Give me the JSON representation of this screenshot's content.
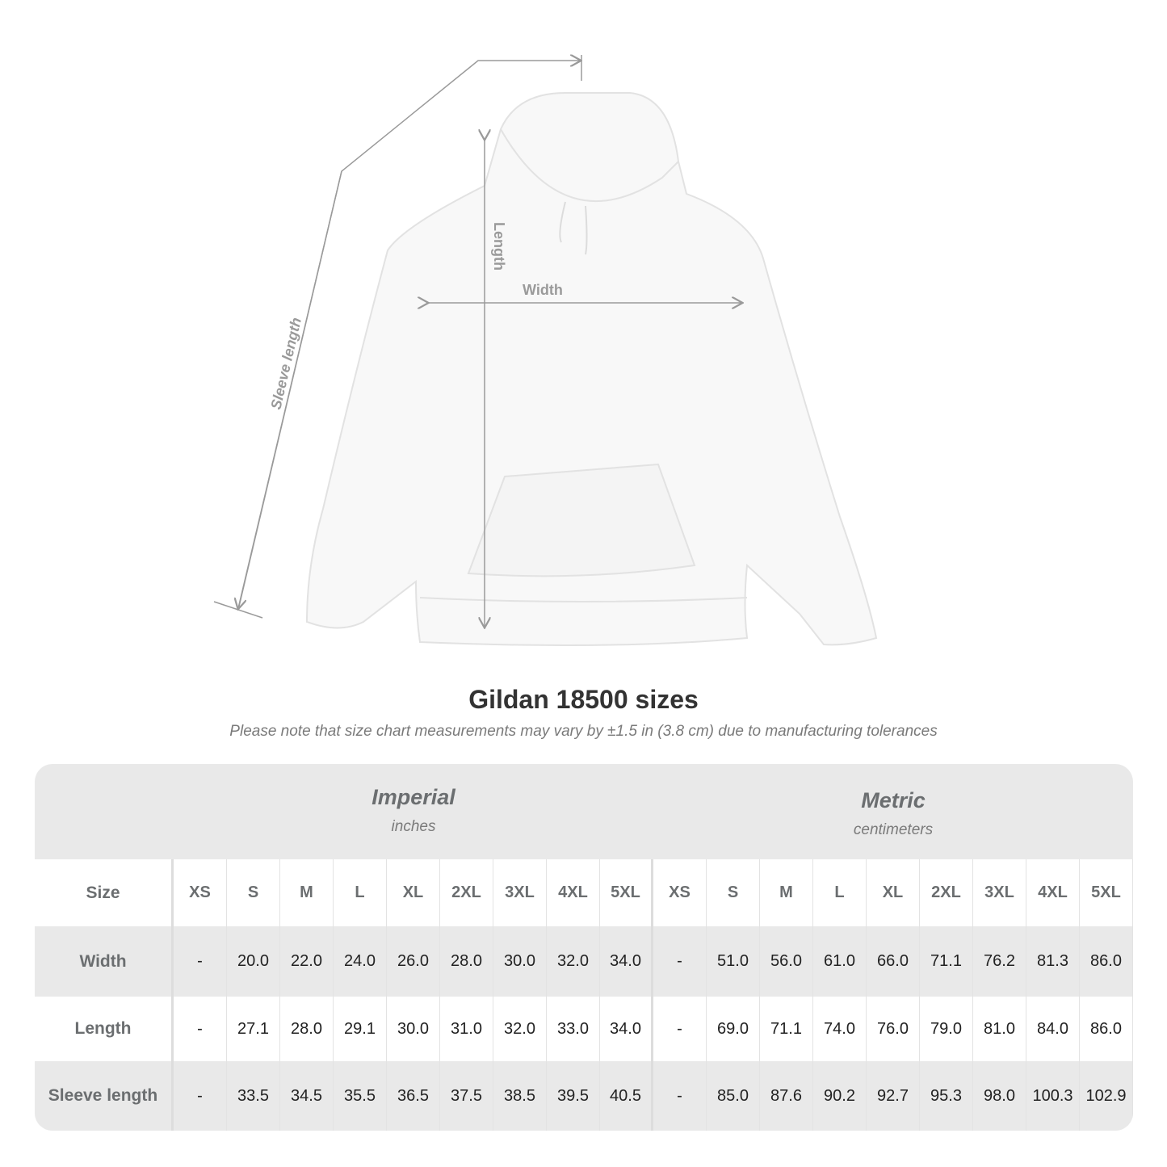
{
  "diagram": {
    "labels": {
      "length": "Length",
      "width": "Width",
      "sleeve": "Sleeve length"
    },
    "line_color": "#9a9a9a"
  },
  "title": "Gildan 18500 sizes",
  "subtitle": "Please note that size chart measurements may vary by ±1.5 in (3.8 cm) due to manufacturing tolerances",
  "table": {
    "imperial": {
      "title": "Imperial",
      "unit": "inches"
    },
    "metric": {
      "title": "Metric",
      "unit": "centimeters"
    },
    "size_label": "Size",
    "sizes": [
      "XS",
      "S",
      "M",
      "L",
      "XL",
      "2XL",
      "3XL",
      "4XL",
      "5XL"
    ],
    "rows": [
      {
        "label": "Width",
        "imperial": [
          "-",
          "20.0",
          "22.0",
          "24.0",
          "26.0",
          "28.0",
          "30.0",
          "32.0",
          "34.0"
        ],
        "metric": [
          "-",
          "51.0",
          "56.0",
          "61.0",
          "66.0",
          "71.1",
          "76.2",
          "81.3",
          "86.0"
        ]
      },
      {
        "label": "Length",
        "imperial": [
          "-",
          "27.1",
          "28.0",
          "29.1",
          "30.0",
          "31.0",
          "32.0",
          "33.0",
          "34.0"
        ],
        "metric": [
          "-",
          "69.0",
          "71.1",
          "74.0",
          "76.0",
          "79.0",
          "81.0",
          "84.0",
          "86.0"
        ]
      },
      {
        "label": "Sleeve length",
        "imperial": [
          "-",
          "33.5",
          "34.5",
          "35.5",
          "36.5",
          "37.5",
          "38.5",
          "39.5",
          "40.5"
        ],
        "metric": [
          "-",
          "85.0",
          "87.6",
          "90.2",
          "92.7",
          "95.3",
          "98.0",
          "100.3",
          "102.9"
        ]
      }
    ]
  }
}
